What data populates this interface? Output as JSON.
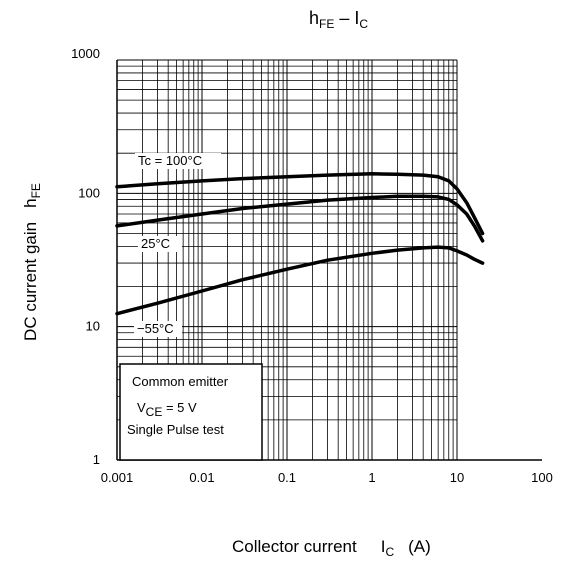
{
  "chart_data": {
    "type": "line",
    "title": {
      "main": "h",
      "main_sub": "FE",
      "sep": " – ",
      "rhs": "I",
      "rhs_sub": "C"
    },
    "xlabel": {
      "text": "Collector current",
      "sym": "I",
      "sym_sub": "C",
      "unit": "(A)"
    },
    "ylabel": {
      "text": "DC current gain",
      "sym": "h",
      "sym_sub": "FE"
    },
    "x_scale": "log",
    "y_scale": "log",
    "xlim": [
      0.001,
      100
    ],
    "ylim": [
      1,
      1000
    ],
    "x_ticks": [
      {
        "value": 0.001,
        "label": "0.001"
      },
      {
        "value": 0.01,
        "label": "0.01"
      },
      {
        "value": 0.1,
        "label": "0.1"
      },
      {
        "value": 1,
        "label": "1"
      },
      {
        "value": 10,
        "label": "10"
      },
      {
        "value": 100,
        "label": "100"
      }
    ],
    "y_ticks": [
      {
        "value": 1,
        "label": "1"
      },
      {
        "value": 10,
        "label": "10"
      },
      {
        "value": 100,
        "label": "100"
      },
      {
        "value": 1000,
        "label": "1000"
      }
    ],
    "grid": true,
    "grid_region": "x 0.001–10, y 1–1000",
    "series": [
      {
        "name": "Tc = 100°C",
        "x": [
          0.001,
          0.003,
          0.01,
          0.03,
          0.1,
          0.3,
          1,
          2,
          4,
          6,
          8,
          10,
          13,
          16,
          20
        ],
        "y": [
          112,
          118,
          124,
          129,
          133,
          137,
          140,
          139,
          137,
          133,
          124,
          108,
          85,
          66,
          50
        ]
      },
      {
        "name": "25°C",
        "x": [
          0.001,
          0.003,
          0.01,
          0.03,
          0.1,
          0.3,
          1,
          2,
          4,
          6,
          8,
          10,
          13,
          16,
          20
        ],
        "y": [
          57,
          63,
          70,
          77,
          83,
          89,
          93,
          95,
          95,
          94,
          90,
          82,
          70,
          57,
          44
        ]
      },
      {
        "name": "−55°C",
        "x": [
          0.001,
          0.003,
          0.01,
          0.03,
          0.1,
          0.3,
          1,
          2,
          4,
          6,
          8,
          10,
          13,
          16,
          20
        ],
        "y": [
          12.5,
          15,
          18.5,
          22.5,
          27,
          31.5,
          35.5,
          37.5,
          39,
          39.5,
          39,
          37,
          34.5,
          32,
          30
        ]
      }
    ],
    "annotation": {
      "line1": "Common emitter",
      "line2_sym": "V",
      "line2_sub": "CE",
      "line2_rest": " = 5 V",
      "line3": "Single Pulse test"
    },
    "line_color": "#000000"
  }
}
